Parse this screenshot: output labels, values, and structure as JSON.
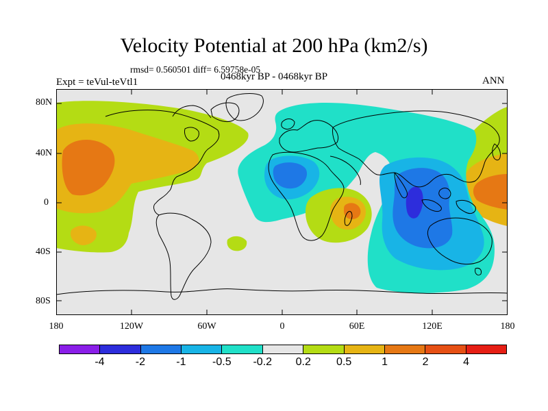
{
  "title": "Velocity Potential at 200 hPa (km2/s)",
  "stats_line": "rmsd= 0.560501 diff= 6.59758e-05",
  "experiment": "Expt = teVul-teVtl1",
  "period": "0468kyr BP - 0468kyr BP",
  "season": "ANN",
  "lat_labels": [
    "80N",
    "40N",
    "0",
    "40S",
    "80S"
  ],
  "lon_labels": [
    "180",
    "120W",
    "60W",
    "0",
    "60E",
    "120E",
    "180"
  ],
  "colorbar": {
    "colors": [
      "#8a1ee8",
      "#2d2ddc",
      "#1e78e6",
      "#18b4e6",
      "#20e0c8",
      "#e6e6e6",
      "#b4dc14",
      "#e6b414",
      "#e67814",
      "#e65014",
      "#e61e14"
    ],
    "labels": [
      "-4",
      "-2",
      "-1",
      "-0.5",
      "-0.2",
      "0.2",
      "0.5",
      "1",
      "2",
      "4"
    ]
  },
  "colors": {
    "neutral": "#e6e6e6",
    "green": "#b4dc14",
    "yellow": "#e6b414",
    "orange": "#e67814",
    "cyan": "#20e0c8",
    "lightblue": "#18b4e6",
    "blue": "#1e78e6",
    "darkblue": "#2d2ddc"
  }
}
